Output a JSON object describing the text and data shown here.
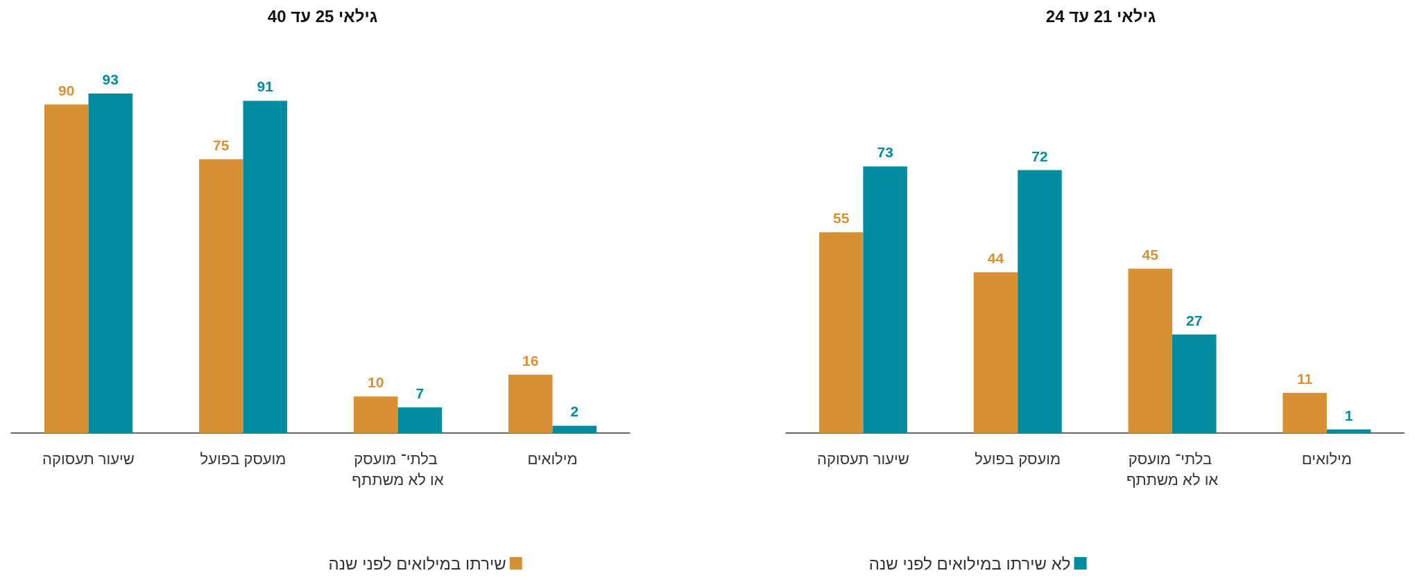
{
  "chart_data": [
    {
      "type": "bar",
      "title": "גילאי 25 עד 40",
      "categories": [
        "שיעור תעסוקה",
        "מועסק בפועל",
        "בלתי־ מועסק או לא משתתף",
        "מילואים"
      ],
      "series": [
        {
          "name": "שירתו במילואים לפני שנה",
          "color": "#d98f33",
          "values": [
            90,
            75,
            10,
            16
          ]
        },
        {
          "name": "לא שירתו במילואים לפני שנה",
          "color": "#008ca0",
          "values": [
            93,
            91,
            7,
            2
          ]
        }
      ],
      "data_labels": true,
      "legend": "bottom",
      "grid": false
    },
    {
      "type": "bar",
      "title": "גילאי 21 עד 24",
      "categories": [
        "שיעור תעסוקה",
        "מועסק בפועל",
        "בלתי־ מועסק או לא משתתף",
        "מילואים"
      ],
      "series": [
        {
          "name": "שירתו במילואים לפני שנה",
          "color": "#d98f33",
          "values": [
            55,
            44,
            45,
            11
          ]
        },
        {
          "name": "לא שירתו במילואים לפני שנה",
          "color": "#008ca0",
          "values": [
            73,
            72,
            27,
            1
          ]
        }
      ],
      "data_labels": true,
      "legend": "bottom",
      "grid": false
    }
  ]
}
